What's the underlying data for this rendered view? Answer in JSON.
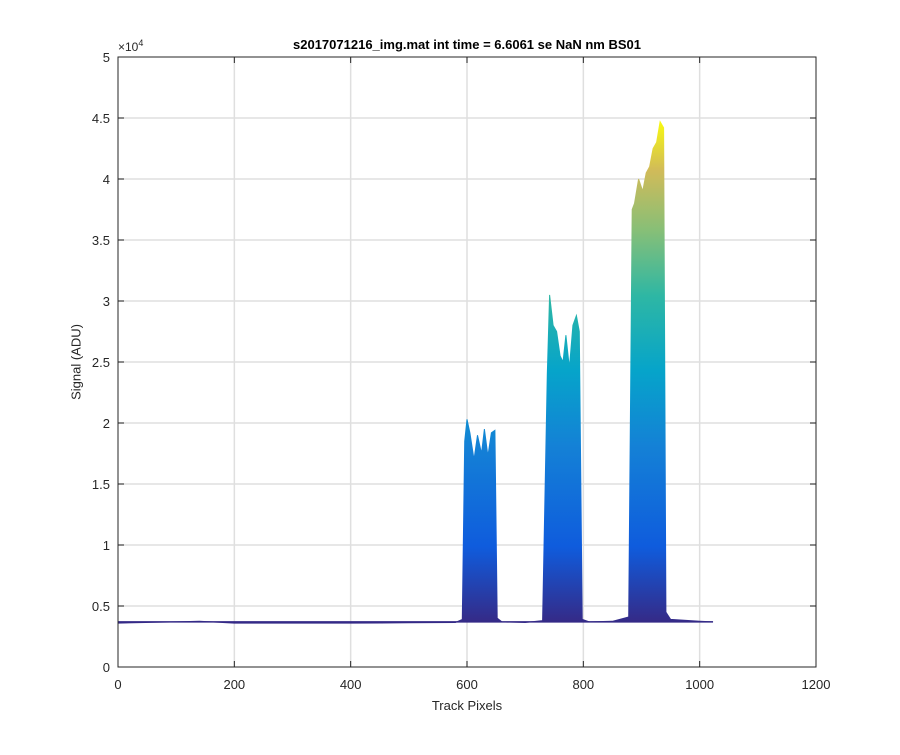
{
  "chart_data": {
    "type": "area",
    "title": "s2017071216_img.mat int time = 6.6061 se  NaN nm BS01",
    "xlabel": "Track Pixels",
    "ylabel": "Signal (ADU)",
    "xlim": [
      0,
      1200
    ],
    "ylim": [
      0,
      50000
    ],
    "x_ticks": [
      "0",
      "200",
      "400",
      "600",
      "800",
      "1000",
      "1200"
    ],
    "y_ticks": [
      "0",
      "0.5",
      "1",
      "1.5",
      "2",
      "2.5",
      "3",
      "3.5",
      "4",
      "4.5",
      "5"
    ],
    "y_exponent": {
      "base": "×10",
      "power": "4"
    },
    "grid": true,
    "colormap": "parula (color mapped to signal)",
    "baseline": 3700,
    "series": [
      {
        "x": [
          0,
          100,
          140,
          200,
          300,
          400,
          500,
          580,
          592,
          596,
          600,
          605,
          612,
          618,
          625,
          630,
          636,
          642,
          648,
          652,
          660,
          700,
          730,
          738,
          742,
          748,
          754,
          760,
          765,
          770,
          776,
          782,
          788,
          793,
          798,
          810,
          850,
          878,
          884,
          888,
          895,
          902,
          908,
          914,
          920,
          926,
          932,
          938,
          942,
          950,
          1000,
          1023
        ],
        "y": [
          3600,
          3700,
          3750,
          3600,
          3600,
          3600,
          3620,
          3650,
          3900,
          18500,
          20300,
          19200,
          17000,
          19000,
          17500,
          19500,
          17300,
          19200,
          19400,
          4000,
          3700,
          3650,
          3800,
          24000,
          30500,
          28000,
          27500,
          25500,
          25000,
          27200,
          24500,
          28000,
          28800,
          27500,
          3900,
          3700,
          3750,
          4100,
          37500,
          38000,
          40000,
          39000,
          40500,
          41000,
          42500,
          43000,
          44700,
          44200,
          4500,
          3900,
          3750,
          3700
        ]
      }
    ]
  }
}
